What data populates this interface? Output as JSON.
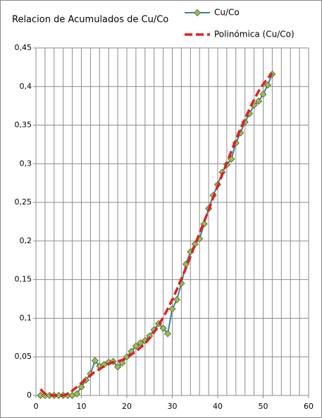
{
  "chart_data": {
    "type": "line",
    "title": "Relacion de Acumulados de Cu/Co",
    "x": [
      1,
      2,
      3,
      4,
      5,
      6,
      7,
      8,
      9,
      10,
      11,
      12,
      13,
      14,
      15,
      16,
      17,
      18,
      19,
      20,
      21,
      22,
      23,
      24,
      25,
      26,
      27,
      28,
      29,
      30,
      31,
      32,
      33,
      34,
      35,
      36,
      37,
      38,
      39,
      40,
      41,
      42,
      43,
      44,
      45,
      46,
      47,
      48,
      49,
      50,
      51,
      52
    ],
    "series": [
      {
        "name": "Cu/Co",
        "color": "#31849b",
        "marker": "diamond",
        "marker_color": "#9bbb59",
        "dash": false,
        "values": [
          0,
          0,
          0,
          0,
          0,
          0,
          0,
          0,
          0.002,
          0.011,
          0.02,
          0.028,
          0.045,
          0.038,
          0.04,
          0.043,
          0.044,
          0.037,
          0.042,
          0.05,
          0.057,
          0.064,
          0.068,
          0.071,
          0.077,
          0.085,
          0.093,
          0.087,
          0.08,
          0.112,
          0.124,
          0.145,
          0.17,
          0.186,
          0.196,
          0.203,
          0.222,
          0.242,
          0.259,
          0.273,
          0.289,
          0.299,
          0.306,
          0.327,
          0.34,
          0.354,
          0.365,
          0.376,
          0.381,
          0.39,
          0.402,
          0.416
        ]
      },
      {
        "name": "Polinómica (Cu/Co)",
        "color": "#e02020",
        "dash": true,
        "values": [
          0.008,
          0.002,
          0.001,
          0,
          0,
          0,
          0.002,
          0.006,
          0.011,
          0.016,
          0.021,
          0.026,
          0.031,
          0.034,
          0.038,
          0.041,
          0.043,
          0.044,
          0.046,
          0.049,
          0.053,
          0.057,
          0.062,
          0.067,
          0.074,
          0.082,
          0.091,
          0.101,
          0.112,
          0.124,
          0.137,
          0.151,
          0.165,
          0.18,
          0.195,
          0.21,
          0.225,
          0.24,
          0.256,
          0.271,
          0.286,
          0.301,
          0.316,
          0.331,
          0.345,
          0.358,
          0.371,
          0.383,
          0.394,
          0.403,
          0.411,
          0.417
        ]
      }
    ],
    "xlim": [
      0,
      60
    ],
    "xticks": [
      0,
      10,
      20,
      30,
      40,
      50,
      60
    ],
    "xgrid": [
      2,
      4,
      6,
      8,
      10,
      12,
      14,
      16,
      18,
      20,
      22,
      24,
      26,
      28,
      30,
      32,
      34,
      36,
      38,
      40,
      42,
      44,
      46,
      48,
      50,
      52,
      54,
      56,
      58,
      60
    ],
    "ylim": [
      0,
      0.45
    ],
    "yticks": [
      0,
      {
        "value": 0.05,
        "label": "0,05"
      },
      {
        "value": 0.1,
        "label": "0,1"
      },
      {
        "value": 0.15,
        "label": "0,15"
      },
      {
        "value": 0.2,
        "label": "0,2"
      },
      {
        "value": 0.25,
        "label": "0,25"
      },
      {
        "value": 0.3,
        "label": "0,3"
      },
      {
        "value": 0.35,
        "label": "0,35"
      },
      {
        "value": 0.4,
        "label": "0,4"
      },
      {
        "value": 0.45,
        "label": "0,45"
      }
    ],
    "grid": true,
    "legend": "top-right"
  }
}
